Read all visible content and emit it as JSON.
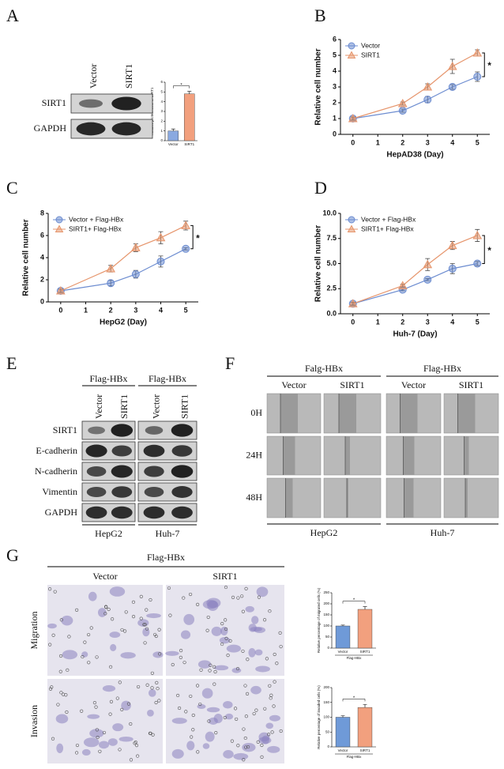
{
  "chart_data": [
    {
      "type": "bar",
      "ylabel": "Relative protein level of SIRT1",
      "categories": [
        "Vector",
        "SIRT1"
      ],
      "values": [
        1,
        4.8
      ],
      "errors": [
        0.2,
        0.25
      ],
      "colors": [
        "#8aa9e0",
        "#f2a07e"
      ],
      "ylim": [
        0,
        6
      ],
      "yticks": [
        0,
        1,
        2,
        3,
        4,
        5,
        6
      ],
      "annotation": "*"
    },
    {
      "type": "line",
      "xlabel": "HepAD38 (Day)",
      "ylabel": "Relative cell number",
      "x": [
        0,
        2,
        3,
        4,
        5
      ],
      "xlim": [
        -0.5,
        5.5
      ],
      "xticks": [
        0,
        1,
        2,
        3,
        4,
        5
      ],
      "ylim": [
        0,
        6
      ],
      "yticks": [
        0,
        1,
        2,
        3,
        4,
        5,
        6
      ],
      "legend": "upper left",
      "annotation": "*",
      "series": [
        {
          "name": "Vector",
          "color": "#6c8cd0",
          "marker": "circle",
          "values": [
            1.0,
            1.5,
            2.2,
            3.0,
            3.65
          ],
          "errors": [
            0.1,
            0.1,
            0.2,
            0.15,
            0.3
          ]
        },
        {
          "name": "SIRT1",
          "color": "#e6956c",
          "marker": "triangle",
          "values": [
            1.0,
            1.95,
            3.0,
            4.3,
            5.15
          ],
          "errors": [
            0.1,
            0.1,
            0.2,
            0.45,
            0.2
          ]
        }
      ]
    },
    {
      "type": "line",
      "xlabel": "HepG2 (Day)",
      "ylabel": "Relative cell number",
      "x": [
        0,
        2,
        3,
        4,
        5
      ],
      "xlim": [
        -0.5,
        5.5
      ],
      "xticks": [
        0,
        1,
        2,
        3,
        4,
        5
      ],
      "ylim": [
        0,
        8
      ],
      "yticks": [
        0,
        2,
        4,
        6,
        8
      ],
      "legend": "upper left",
      "annotation": "*",
      "series": [
        {
          "name": "Vector + Flag-HBx",
          "color": "#6c8cd0",
          "marker": "circle",
          "values": [
            1.0,
            1.7,
            2.5,
            3.65,
            4.8
          ],
          "errors": [
            0.15,
            0.25,
            0.35,
            0.5,
            0.1
          ]
        },
        {
          "name": "SIRT1+ Flag-HBx",
          "color": "#e6956c",
          "marker": "triangle",
          "values": [
            1.0,
            3.0,
            4.9,
            5.8,
            6.9
          ],
          "errors": [
            0.15,
            0.3,
            0.35,
            0.55,
            0.4
          ]
        }
      ]
    },
    {
      "type": "line",
      "xlabel": "Huh-7 (Day)",
      "ylabel": "Relative cell number",
      "x": [
        0,
        2,
        3,
        4,
        5
      ],
      "xlim": [
        -0.5,
        5.5
      ],
      "xticks": [
        0,
        1,
        2,
        3,
        4,
        5
      ],
      "ylim": [
        0,
        10
      ],
      "yticks": [
        {
          "value": 0,
          "label": "0.0"
        },
        {
          "value": 2.5,
          "label": "2.5"
        },
        {
          "value": 5,
          "label": "5.0"
        },
        {
          "value": 7.5,
          "label": "7.5"
        },
        {
          "value": 10,
          "label": "10.0"
        }
      ],
      "legend": "upper left",
      "annotation": "*",
      "series": [
        {
          "name": "Vector + Flag-HBx",
          "color": "#6c8cd0",
          "marker": "circle",
          "values": [
            1.0,
            2.4,
            3.4,
            4.5,
            5.0
          ],
          "errors": [
            0.15,
            0.1,
            0.1,
            0.5,
            0.2
          ]
        },
        {
          "name": "SIRT1+ Flag-HBx",
          "color": "#e6956c",
          "marker": "triangle",
          "values": [
            1.0,
            2.8,
            4.9,
            6.8,
            7.8
          ],
          "errors": [
            0.15,
            0.15,
            0.6,
            0.4,
            0.6
          ]
        }
      ]
    },
    {
      "type": "bar",
      "ylabel": "Relative percentage of migrated cells (%)",
      "xlabel": "Flag-HBx",
      "categories": [
        "Vector",
        "SIRT1"
      ],
      "values": [
        100,
        175
      ],
      "errors": [
        4,
        12
      ],
      "colors": [
        "#6f9ad8",
        "#f2a07e"
      ],
      "ylim": [
        0,
        250
      ],
      "yticks": [
        0,
        50,
        100,
        150,
        200,
        250
      ],
      "annotation": "*"
    },
    {
      "type": "bar",
      "ylabel": "Relative percentage of invaded cells (%)",
      "xlabel": "Flag-HBx",
      "categories": [
        "Vector",
        "SIRT1"
      ],
      "values": [
        100,
        133
      ],
      "errors": [
        5,
        10
      ],
      "colors": [
        "#6f9ad8",
        "#f2a07e"
      ],
      "ylim": [
        0,
        200
      ],
      "yticks": [
        0,
        50,
        100,
        150,
        200
      ],
      "annotation": "*"
    }
  ],
  "panels": [
    "A",
    "B",
    "C",
    "D",
    "E",
    "F",
    "G"
  ],
  "blot_a": {
    "lanes": [
      "Vector",
      "SIRT1"
    ],
    "rows": [
      "SIRT1",
      "GAPDH"
    ]
  },
  "blot_e": {
    "groups": [
      {
        "header": "Flag-HBx",
        "cell": "HepG2"
      },
      {
        "header": "Flag-HBx",
        "cell": "Huh-7"
      }
    ],
    "lanes": [
      "Vector",
      "SIRT1"
    ],
    "rows": [
      "SIRT1",
      "E-cadherin",
      "N-cadherin",
      "Vimentin",
      "GAPDH"
    ]
  },
  "wound_f": {
    "groups": [
      {
        "header": "Falg-HBx",
        "cell": "HepG2"
      },
      {
        "header": "Flag-HBx",
        "cell": "Huh-7"
      }
    ],
    "lanes": [
      "Vector",
      "SIRT1"
    ],
    "rows": [
      "0H",
      "24H",
      "48H"
    ]
  },
  "transwell_g": {
    "header": "Flag-HBx",
    "columns": [
      "Vector",
      "SIRT1"
    ],
    "rows": [
      "Migration",
      "Invasion"
    ]
  }
}
